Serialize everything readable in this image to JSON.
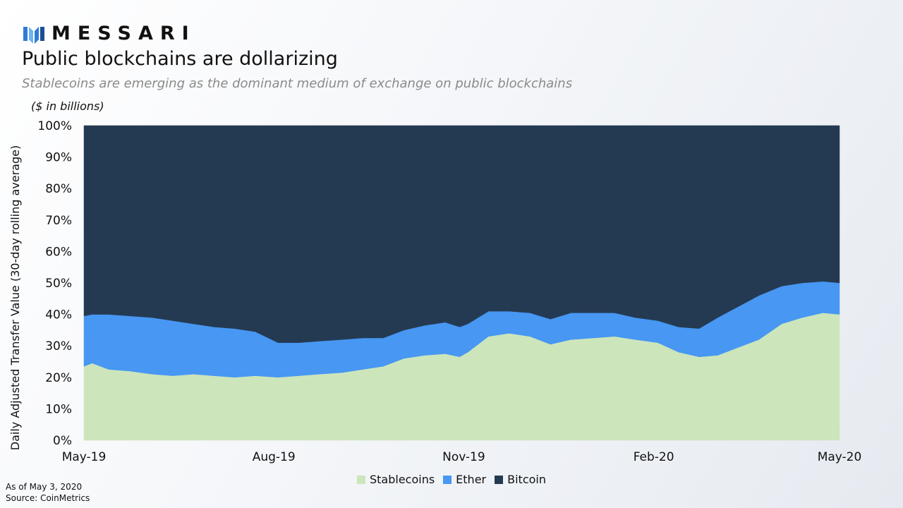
{
  "brand": {
    "name": "MESSARI",
    "logo_icon": "messari-logo-icon"
  },
  "header": {
    "title": "Public blockchains are dollarizing",
    "subtitle": "Stablecoins are emerging as the dominant medium of exchange on public blockchains",
    "units": "($ in billions)"
  },
  "footer": {
    "as_of": "As of May 3, 2020",
    "source": "Source: CoinMetrics"
  },
  "chart_data": {
    "type": "area",
    "stacked": true,
    "ylabel": "Daily Adjusted Transfer Value (30-day rolling average)",
    "ylim": [
      0,
      100
    ],
    "yticks": [
      "0%",
      "10%",
      "20%",
      "30%",
      "40%",
      "50%",
      "60%",
      "70%",
      "80%",
      "90%",
      "100%"
    ],
    "xticks": [
      "May-19",
      "Aug-19",
      "Nov-19",
      "Feb-20",
      "May-20"
    ],
    "grid": false,
    "legend_position": "bottom",
    "x": [
      "2019-05-03",
      "2019-05-07",
      "2019-05-15",
      "2019-05-25",
      "2019-06-05",
      "2019-06-15",
      "2019-06-25",
      "2019-07-05",
      "2019-07-15",
      "2019-07-25",
      "2019-08-05",
      "2019-08-15",
      "2019-08-25",
      "2019-09-05",
      "2019-09-15",
      "2019-09-25",
      "2019-10-05",
      "2019-10-15",
      "2019-10-25",
      "2019-11-01",
      "2019-11-05",
      "2019-11-15",
      "2019-11-25",
      "2019-12-05",
      "2019-12-15",
      "2019-12-25",
      "2020-01-05",
      "2020-01-15",
      "2020-01-25",
      "2020-02-05",
      "2020-02-15",
      "2020-02-25",
      "2020-03-05",
      "2020-03-15",
      "2020-03-25",
      "2020-04-05",
      "2020-04-15",
      "2020-04-25",
      "2020-05-03"
    ],
    "series": [
      {
        "name": "Stablecoins",
        "color": "#cde5bb",
        "values": [
          23.5,
          24.5,
          22.5,
          22,
          21,
          20.5,
          21,
          20.5,
          20,
          20.5,
          20,
          20.5,
          21,
          21.5,
          22.5,
          23.5,
          26,
          27,
          27.5,
          26.5,
          28,
          33,
          34,
          33,
          30.5,
          32,
          32.5,
          33,
          32,
          31,
          28,
          26.5,
          27,
          29.5,
          32,
          37,
          39,
          40.5,
          40
        ]
      },
      {
        "name": "Ether",
        "color": "#4797f3",
        "values": [
          16,
          15.5,
          17.5,
          17.5,
          18,
          17.5,
          16,
          15.5,
          15.5,
          14,
          11,
          10.5,
          10.5,
          10.5,
          10,
          9,
          9,
          9.5,
          10,
          9.5,
          9,
          8,
          7,
          7.5,
          8,
          8.5,
          8,
          7.5,
          7,
          7,
          8,
          9,
          12,
          13,
          14,
          12,
          11,
          10,
          10
        ]
      },
      {
        "name": "Bitcoin",
        "color": "#243a52",
        "values": [
          60.5,
          60,
          60,
          60.5,
          61,
          62,
          63,
          64,
          64.5,
          65.5,
          69,
          69,
          68.5,
          68,
          67.5,
          67.5,
          65,
          63.5,
          62.5,
          64,
          63,
          59,
          59,
          59.5,
          61.5,
          59.5,
          59.5,
          59.5,
          61,
          62,
          64,
          64.5,
          61,
          57.5,
          54,
          51,
          50,
          49.5,
          50
        ]
      }
    ]
  }
}
